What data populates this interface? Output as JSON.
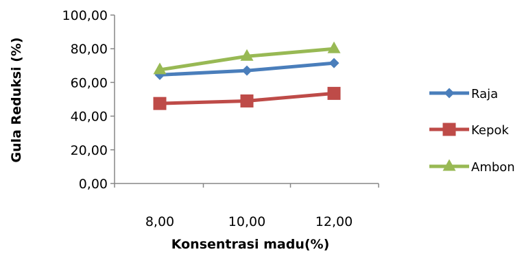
{
  "chart_data": {
    "type": "line",
    "title": "",
    "xlabel": "Konsentrasi madu(%)",
    "ylabel": "Gula Reduksi (%)",
    "categories": [
      "8,00",
      "10,00",
      "12,00"
    ],
    "ylim": [
      0,
      100
    ],
    "yticks": [
      "0,00",
      "20,00",
      "40,00",
      "60,00",
      "80,00",
      "100,00"
    ],
    "grid": false,
    "legend_position": "right",
    "series": [
      {
        "name": "Raja",
        "values": [
          64.5,
          67.0,
          71.5
        ],
        "color": "#4a7ebb",
        "marker": "diamond"
      },
      {
        "name": "Kepok",
        "values": [
          47.5,
          49.0,
          53.5
        ],
        "color": "#be4b48",
        "marker": "square"
      },
      {
        "name": "Ambon",
        "values": [
          67.5,
          75.5,
          80.0
        ],
        "color": "#98b954",
        "marker": "triangle"
      }
    ]
  }
}
